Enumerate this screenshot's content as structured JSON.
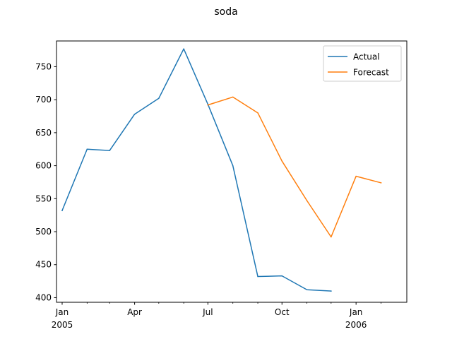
{
  "chart_data": {
    "type": "line",
    "title": "soda",
    "xlabel": "",
    "ylabel": "",
    "x": [
      "2005-01",
      "2005-02",
      "2005-03",
      "2005-04",
      "2005-05",
      "2005-06",
      "2005-07",
      "2005-08",
      "2005-09",
      "2005-10",
      "2005-11",
      "2005-12",
      "2006-01",
      "2006-02"
    ],
    "x_ticks": [
      {
        "x": "2005-01",
        "label": "Jan",
        "sublabel": "2005",
        "major": true
      },
      {
        "x": "2005-02",
        "label": "",
        "sublabel": "",
        "major": false
      },
      {
        "x": "2005-03",
        "label": "",
        "sublabel": "",
        "major": false
      },
      {
        "x": "2005-04",
        "label": "Apr",
        "sublabel": "",
        "major": true
      },
      {
        "x": "2005-05",
        "label": "",
        "sublabel": "",
        "major": false
      },
      {
        "x": "2005-06",
        "label": "",
        "sublabel": "",
        "major": false
      },
      {
        "x": "2005-07",
        "label": "Jul",
        "sublabel": "",
        "major": true
      },
      {
        "x": "2005-08",
        "label": "",
        "sublabel": "",
        "major": false
      },
      {
        "x": "2005-09",
        "label": "",
        "sublabel": "",
        "major": false
      },
      {
        "x": "2005-10",
        "label": "Oct",
        "sublabel": "",
        "major": true
      },
      {
        "x": "2005-11",
        "label": "",
        "sublabel": "",
        "major": false
      },
      {
        "x": "2005-12",
        "label": "",
        "sublabel": "",
        "major": false
      },
      {
        "x": "2006-01",
        "label": "Jan",
        "sublabel": "2006",
        "major": true
      },
      {
        "x": "2006-02",
        "label": "",
        "sublabel": "",
        "major": false
      }
    ],
    "y_ticks": [
      400,
      450,
      500,
      550,
      600,
      650,
      700,
      750
    ],
    "xlim": [
      "2004-12-25",
      "2006-03-05"
    ],
    "ylim": [
      393,
      789
    ],
    "grid": false,
    "legend_position": "top-right",
    "series": [
      {
        "name": "Actual",
        "color": "#1f77b4",
        "points": [
          {
            "x": "2005-01",
            "y": 532
          },
          {
            "x": "2005-02",
            "y": 625
          },
          {
            "x": "2005-03",
            "y": 623
          },
          {
            "x": "2005-04",
            "y": 678
          },
          {
            "x": "2005-05",
            "y": 702
          },
          {
            "x": "2005-06",
            "y": 777
          },
          {
            "x": "2005-07",
            "y": 693
          },
          {
            "x": "2005-08",
            "y": 600
          },
          {
            "x": "2005-09",
            "y": 432
          },
          {
            "x": "2005-10",
            "y": 433
          },
          {
            "x": "2005-11",
            "y": 412
          },
          {
            "x": "2005-12",
            "y": 410
          }
        ]
      },
      {
        "name": "Forecast",
        "color": "#ff7f0e",
        "points": [
          {
            "x": "2005-07",
            "y": 692
          },
          {
            "x": "2005-08",
            "y": 704
          },
          {
            "x": "2005-09",
            "y": 680
          },
          {
            "x": "2005-10",
            "y": 607
          },
          {
            "x": "2005-11",
            "y": 547
          },
          {
            "x": "2005-12",
            "y": 492
          },
          {
            "x": "2006-01",
            "y": 584
          },
          {
            "x": "2006-02",
            "y": 574
          }
        ]
      }
    ]
  }
}
